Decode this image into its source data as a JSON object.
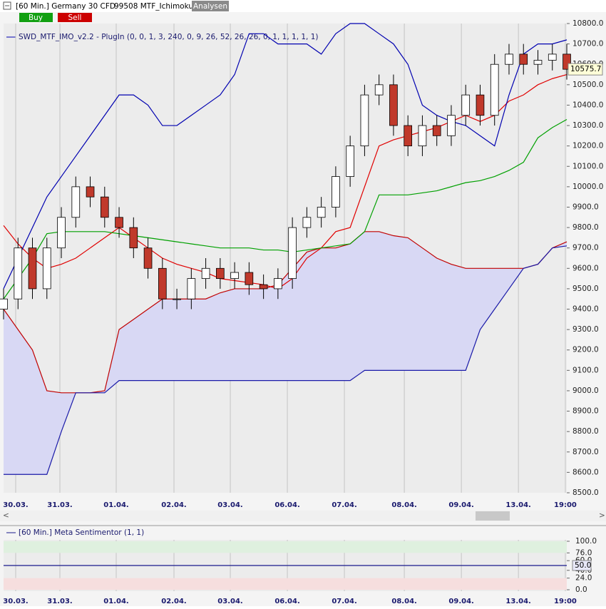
{
  "header": {
    "title": "[60 Min.] Germany 30 CFD",
    "workspace": "99508 MTF_Ichimoku",
    "tab": "Analysen",
    "buy": "Buy",
    "sell": "Sell"
  },
  "chart_data": [
    {
      "type": "candlestick",
      "legend": "SWD_MTF_IMO_v2.2 - PlugIn  (0, 0, 1, 3, 240, 0, 9, 26, 52, 26, 26, 0, 1, 1, 1, 1, 1)",
      "x": [
        0,
        1,
        2,
        3,
        4,
        5,
        6,
        7,
        8,
        9,
        10,
        11,
        12,
        13,
        14,
        15,
        16,
        17,
        18,
        19,
        20,
        21,
        22,
        23,
        24,
        25,
        26,
        27,
        28,
        29,
        30,
        31,
        32,
        33,
        34,
        35,
        36,
        37,
        38,
        39
      ],
      "xlim": [
        0,
        39
      ],
      "xticks": [
        {
          "value": 0.84,
          "label": "30.03."
        },
        {
          "value": 3.9,
          "label": "31.03."
        },
        {
          "value": 7.8,
          "label": "01.04."
        },
        {
          "value": 11.8,
          "label": "02.04."
        },
        {
          "value": 15.7,
          "label": "03.04."
        },
        {
          "value": 19.65,
          "label": "06.04."
        },
        {
          "value": 23.6,
          "label": "07.04."
        },
        {
          "value": 27.75,
          "label": "08.04."
        },
        {
          "value": 31.7,
          "label": "09.04."
        },
        {
          "value": 35.65,
          "label": "13.04."
        },
        {
          "value": 38.9,
          "label": "19:00"
        }
      ],
      "ylim": [
        8500,
        10800
      ],
      "yticks": [
        {
          "value": 10800,
          "label": "10800.0"
        },
        {
          "value": 10700,
          "label": "10700.0"
        },
        {
          "value": 10600,
          "label": "10600.0"
        },
        {
          "value": 10500,
          "label": "10500.0"
        },
        {
          "value": 10400,
          "label": "10400.0"
        },
        {
          "value": 10300,
          "label": "10300.0"
        },
        {
          "value": 10200,
          "label": "10200.0"
        },
        {
          "value": 10100,
          "label": "10100.0"
        },
        {
          "value": 10000,
          "label": "10000.0"
        },
        {
          "value": 9900,
          "label": "9900.0"
        },
        {
          "value": 9800,
          "label": "9800.0"
        },
        {
          "value": 9700,
          "label": "9700.0"
        },
        {
          "value": 9600,
          "label": "9600.0"
        },
        {
          "value": 9500,
          "label": "9500.0"
        },
        {
          "value": 9400,
          "label": "9400.0"
        },
        {
          "value": 9300,
          "label": "9300.0"
        },
        {
          "value": 9200,
          "label": "9200.0"
        },
        {
          "value": 9100,
          "label": "9100.0"
        },
        {
          "value": 9000,
          "label": "9000.0"
        },
        {
          "value": 8900,
          "label": "8900.0"
        },
        {
          "value": 8800,
          "label": "8800.0"
        },
        {
          "value": 8700,
          "label": "8700.0"
        },
        {
          "value": 8600,
          "label": "8600.0"
        },
        {
          "value": 8500,
          "label": "8500.0"
        }
      ],
      "grid": "x",
      "cloud_color": "#d8d8f4",
      "up_color": "#ffffff",
      "down_color": "#c0392b",
      "open": [
        9400,
        9450,
        9700,
        9500,
        9700,
        9850,
        10000,
        9950,
        9850,
        9800,
        9700,
        9600,
        9450,
        9450,
        9550,
        9600,
        9550,
        9580,
        9520,
        9500,
        9550,
        9800,
        9850,
        9900,
        10050,
        10200,
        10450,
        10500,
        10300,
        10200,
        10300,
        10250,
        10350,
        10450,
        10350,
        10600,
        10650,
        10600,
        10620,
        10650
      ],
      "high": [
        9500,
        9750,
        9750,
        9750,
        9900,
        10050,
        10050,
        10000,
        9900,
        9850,
        9750,
        9650,
        9500,
        9600,
        9650,
        9650,
        9630,
        9630,
        9570,
        9600,
        9850,
        9900,
        9950,
        10100,
        10250,
        10500,
        10550,
        10550,
        10350,
        10350,
        10350,
        10400,
        10500,
        10500,
        10650,
        10700,
        10700,
        10670,
        10700,
        10700
      ],
      "low": [
        9350,
        9400,
        9450,
        9450,
        9650,
        9800,
        9900,
        9800,
        9750,
        9650,
        9550,
        9400,
        9400,
        9400,
        9500,
        9500,
        9500,
        9470,
        9450,
        9450,
        9500,
        9750,
        9800,
        9850,
        10000,
        10150,
        10400,
        10250,
        10150,
        10150,
        10200,
        10200,
        10300,
        10300,
        10300,
        10550,
        10550,
        10550,
        10570,
        10525
      ],
      "close": [
        9450,
        9700,
        9500,
        9700,
        9850,
        10000,
        9950,
        9850,
        9800,
        9700,
        9600,
        9450,
        9450,
        9550,
        9600,
        9550,
        9580,
        9520,
        9500,
        9550,
        9800,
        9850,
        9900,
        10050,
        10200,
        10450,
        10500,
        10300,
        10200,
        10300,
        10250,
        10350,
        10450,
        10350,
        10600,
        10650,
        10600,
        10620,
        10650,
        10575.7
      ],
      "series": [
        {
          "color": "#c00000",
          "values": [
            9400,
            9300,
            9200,
            9000,
            8990,
            8990,
            8990,
            9000,
            9300,
            9350,
            9400,
            9450,
            9450,
            9450,
            9450,
            9480,
            9500,
            9500,
            9500,
            9520,
            9600,
            9680,
            9700,
            9700,
            9720,
            9780,
            9780,
            9760,
            9750,
            9700,
            9650,
            9620,
            9600,
            9600,
            9600,
            9600,
            9600,
            9620,
            9700,
            9730
          ]
        },
        {
          "color": "#1a1aa8",
          "values": [
            8590,
            8590,
            8590,
            8590,
            8800,
            8990,
            8990,
            8990,
            9050,
            9050,
            9050,
            9050,
            9050,
            9050,
            9050,
            9050,
            9050,
            9050,
            9050,
            9050,
            9050,
            9050,
            9050,
            9050,
            9050,
            9100,
            9100,
            9100,
            9100,
            9100,
            9100,
            9100,
            9100,
            9300,
            9400,
            9500,
            9600,
            9620,
            9700,
            9710
          ]
        },
        {
          "color": "#e00000",
          "values": [
            9810,
            9720,
            9650,
            9600,
            9620,
            9650,
            9700,
            9750,
            9800,
            9750,
            9700,
            9650,
            9620,
            9600,
            9580,
            9550,
            9540,
            9530,
            9520,
            9500,
            9550,
            9650,
            9700,
            9780,
            9800,
            10000,
            10200,
            10230,
            10250,
            10270,
            10290,
            10320,
            10350,
            10320,
            10350,
            10420,
            10450,
            10500,
            10530,
            10550
          ]
        },
        {
          "color": "#00a000",
          "values": [
            9450,
            9550,
            9650,
            9770,
            9780,
            9780,
            9780,
            9780,
            9770,
            9760,
            9750,
            9740,
            9730,
            9720,
            9710,
            9700,
            9700,
            9700,
            9690,
            9690,
            9680,
            9690,
            9700,
            9710,
            9720,
            9780,
            9960,
            9960,
            9960,
            9970,
            9980,
            10000,
            10020,
            10030,
            10050,
            10080,
            10120,
            10240,
            10290,
            10330
          ]
        },
        {
          "color": "#0000b0",
          "values": [
            9500,
            9650,
            9800,
            9950,
            10050,
            10150,
            10250,
            10350,
            10450,
            10450,
            10400,
            10300,
            10300,
            10350,
            10400,
            10450,
            10550,
            10750,
            10750,
            10700,
            10700,
            10700,
            10650,
            10750,
            10800,
            10800,
            10750,
            10700,
            10600,
            10400,
            10350,
            10320,
            10300,
            10250,
            10200,
            10450,
            10650,
            10700,
            10700,
            10720
          ]
        }
      ]
    },
    {
      "type": "line",
      "legend": "[60 Min.] Meta Sentimentor  (1, 1)",
      "ylim": [
        0,
        100
      ],
      "yticks": [
        {
          "value": 100,
          "label": "100.0"
        },
        {
          "value": 76,
          "label": "76.0"
        },
        {
          "value": 60,
          "label": "60.0"
        },
        {
          "value": 40,
          "label": "40.0"
        },
        {
          "value": 24,
          "label": "24.0"
        },
        {
          "value": 0,
          "label": "0.0"
        }
      ],
      "zones": [
        {
          "from": 76,
          "to": 100,
          "color": "#dff0df"
        },
        {
          "from": 0,
          "to": 24,
          "color": "#f6dede"
        }
      ],
      "level": {
        "value": 50,
        "label": "50.0",
        "color": "#1a1a8c"
      }
    }
  ]
}
